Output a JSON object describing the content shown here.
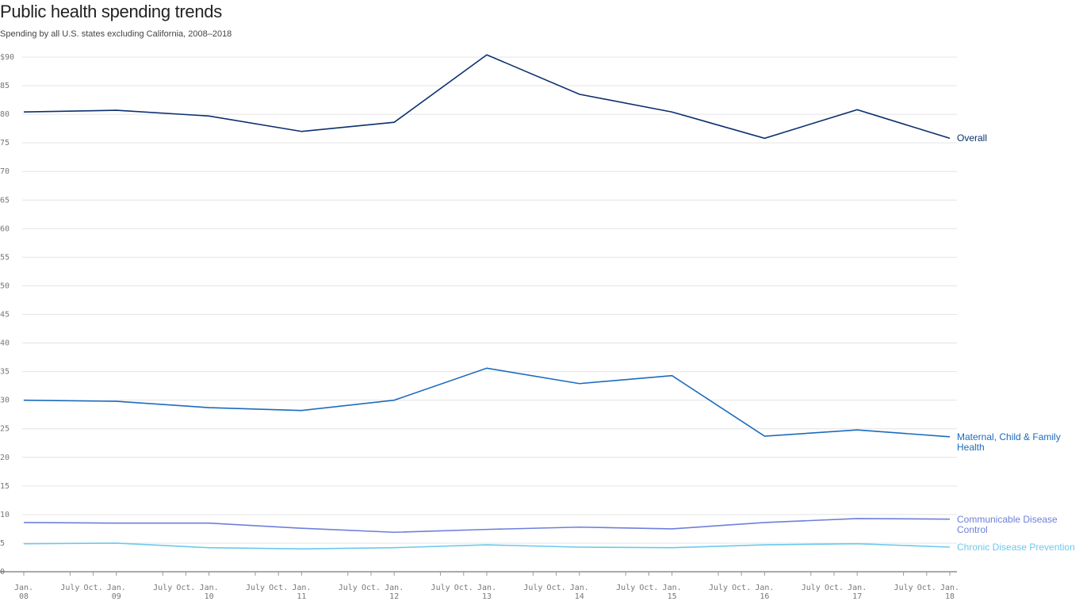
{
  "chart_data": {
    "type": "line",
    "title": "Public health spending trends",
    "subtitle": "Spending by all U.S. states excluding California, 2008–2018",
    "x": [
      2008,
      2009,
      2010,
      2011,
      2012,
      2013,
      2014,
      2015,
      2016,
      2017,
      2018
    ],
    "series": [
      {
        "name": "Overall",
        "color": "#0b2f6e",
        "values": [
          80.4,
          80.7,
          79.7,
          77.0,
          78.6,
          90.4,
          83.5,
          80.4,
          75.8,
          80.8,
          75.8
        ]
      },
      {
        "name": "Maternal, Child & Family Health",
        "color": "#1b6bbd",
        "values": [
          30.0,
          29.8,
          28.7,
          28.2,
          30.0,
          35.6,
          32.9,
          34.3,
          23.7,
          24.8,
          23.6
        ]
      },
      {
        "name": "Communicable Disease Control",
        "color": "#6d7fdb",
        "values": [
          8.6,
          8.5,
          8.5,
          7.6,
          6.9,
          7.4,
          7.8,
          7.5,
          8.6,
          9.3,
          9.2
        ]
      },
      {
        "name": "Chronic Disease Prevention",
        "color": "#6cc9ec",
        "values": [
          4.9,
          5.0,
          4.2,
          4.0,
          4.2,
          4.7,
          4.3,
          4.2,
          4.7,
          4.9,
          4.3
        ]
      }
    ],
    "xlim": [
      2008,
      2018
    ],
    "xticks": [
      {
        "value": 2008,
        "label": "Jan. 08"
      },
      {
        "value": 2008.5,
        "label": "July"
      },
      {
        "value": 2008.75,
        "label": "Oct."
      },
      {
        "value": 2009,
        "label": "Jan. 09"
      },
      {
        "value": 2009.5,
        "label": "July"
      },
      {
        "value": 2009.75,
        "label": "Oct."
      },
      {
        "value": 2010,
        "label": "Jan. 10"
      },
      {
        "value": 2010.5,
        "label": "July"
      },
      {
        "value": 2010.75,
        "label": "Oct."
      },
      {
        "value": 2011,
        "label": "Jan. 11"
      },
      {
        "value": 2011.5,
        "label": "July"
      },
      {
        "value": 2011.75,
        "label": "Oct."
      },
      {
        "value": 2012,
        "label": "Jan. 12"
      },
      {
        "value": 2012.5,
        "label": "July"
      },
      {
        "value": 2012.75,
        "label": "Oct."
      },
      {
        "value": 2013,
        "label": "Jan. 13"
      },
      {
        "value": 2013.5,
        "label": "July"
      },
      {
        "value": 2013.75,
        "label": "Oct."
      },
      {
        "value": 2014,
        "label": "Jan. 14"
      },
      {
        "value": 2014.5,
        "label": "July"
      },
      {
        "value": 2014.75,
        "label": "Oct."
      },
      {
        "value": 2015,
        "label": "Jan. 15"
      },
      {
        "value": 2015.5,
        "label": "July"
      },
      {
        "value": 2015.75,
        "label": "Oct."
      },
      {
        "value": 2016,
        "label": "Jan. 16"
      },
      {
        "value": 2016.5,
        "label": "July"
      },
      {
        "value": 2016.75,
        "label": "Oct."
      },
      {
        "value": 2017,
        "label": "Jan. 17"
      },
      {
        "value": 2017.5,
        "label": "July"
      },
      {
        "value": 2017.75,
        "label": "Oct."
      },
      {
        "value": 2018,
        "label": "Jan. 18"
      }
    ],
    "ylim": [
      0,
      90
    ],
    "yticks": [
      0,
      5,
      10,
      15,
      20,
      25,
      30,
      35,
      40,
      45,
      50,
      55,
      60,
      65,
      70,
      75,
      80,
      85,
      {
        "value": 90,
        "label": "$90"
      }
    ],
    "grid": true
  }
}
